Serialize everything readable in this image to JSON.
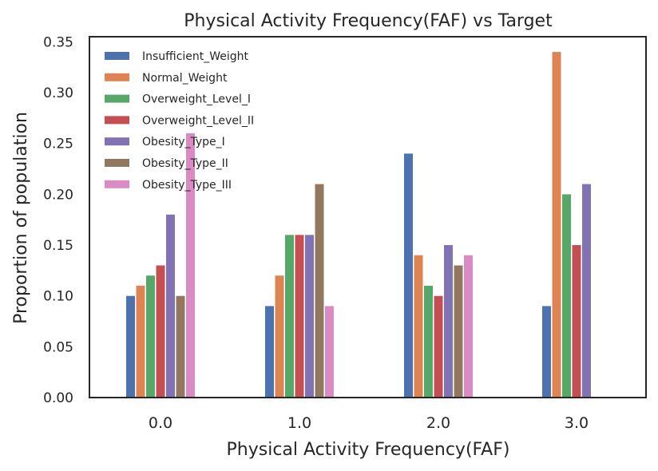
{
  "chart_data": {
    "type": "bar",
    "title": "Physical Activity Frequency(FAF) vs Target",
    "xlabel": "Physical Activity Frequency(FAF)",
    "ylabel": "Proportion of population",
    "categories": [
      "0.0",
      "1.0",
      "2.0",
      "3.0"
    ],
    "yticks": [
      "0.00",
      "0.05",
      "0.10",
      "0.15",
      "0.20",
      "0.25",
      "0.30",
      "0.35"
    ],
    "ylim": [
      0,
      0.355
    ],
    "grid": false,
    "legend_position": "top-left",
    "series": [
      {
        "name": "Insufficient_Weight",
        "color": "#4c72b0",
        "values": [
          0.1,
          0.09,
          0.24,
          0.09
        ]
      },
      {
        "name": "Normal_Weight",
        "color": "#dd8452",
        "values": [
          0.11,
          0.12,
          0.14,
          0.34
        ]
      },
      {
        "name": "Overweight_Level_I",
        "color": "#55a868",
        "values": [
          0.12,
          0.16,
          0.11,
          0.2
        ]
      },
      {
        "name": "Overweight_Level_II",
        "color": "#c44e52",
        "values": [
          0.13,
          0.16,
          0.1,
          0.15
        ]
      },
      {
        "name": "Obesity_Type_I",
        "color": "#8172b3",
        "values": [
          0.18,
          0.16,
          0.15,
          0.21
        ]
      },
      {
        "name": "Obesity_Type_II",
        "color": "#937860",
        "values": [
          0.1,
          0.21,
          0.13,
          0
        ]
      },
      {
        "name": "Obesity_Type_III",
        "color": "#da8bc3",
        "values": [
          0.26,
          0.09,
          0.14,
          0
        ]
      }
    ]
  }
}
